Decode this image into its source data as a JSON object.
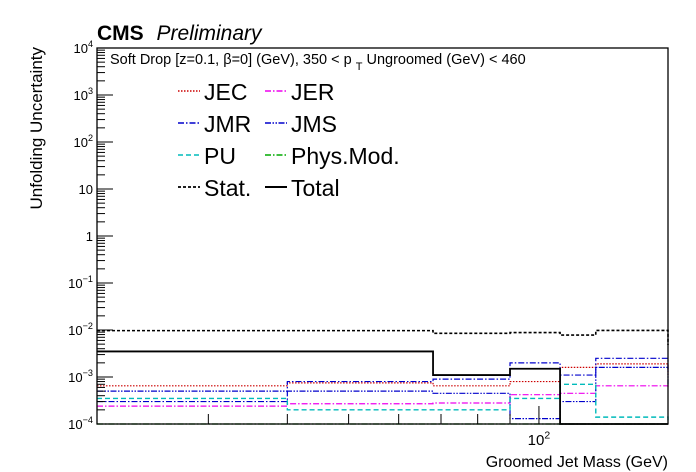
{
  "header": {
    "experiment": "CMS",
    "status": "Preliminary"
  },
  "chart_data": {
    "type": "line",
    "xlabel": "Groomed Jet Mass (GeV)",
    "ylabel": "Unfolding Uncertainty",
    "annotation": {
      "pre": "Soft Drop [z=0.1, ",
      "beta": "β",
      "mid": "=0] (GeV), 350 < p",
      "sub": "T",
      "post": " Ungroomed (GeV)  < 460"
    },
    "x_scale": "log",
    "y_scale": "log",
    "xlim": [
      20,
      160
    ],
    "ylim": [
      0.0001,
      10000
    ],
    "x_bins": [
      20,
      40,
      68,
      90,
      108,
      123,
      160
    ],
    "x_tick_label": "10^2",
    "y_ticks": [
      {
        "value": 0.0001,
        "label": "10^-4"
      },
      {
        "value": 0.001,
        "label": "10^-3"
      },
      {
        "value": 0.01,
        "label": "10^-2"
      },
      {
        "value": 0.1,
        "label": "10^-1"
      },
      {
        "value": 1,
        "label": "1"
      },
      {
        "value": 10,
        "label": "10"
      },
      {
        "value": 100,
        "label": "10^2"
      },
      {
        "value": 1000,
        "label": "10^3"
      },
      {
        "value": 10000,
        "label": "10^4"
      }
    ],
    "series": [
      {
        "name": "JEC",
        "color": "#cc0000",
        "dash": "1.5,1.5",
        "width": 1.2,
        "values": [
          0.00065,
          0.00075,
          0.00065,
          0.0008,
          0.0016,
          0.0019,
          0.0011
        ]
      },
      {
        "name": "JER",
        "color": "#ee00ee",
        "dash": "6,2,1.5,2",
        "width": 1.2,
        "values": [
          0.00024,
          0.00027,
          0.00028,
          0.00042,
          0.00045,
          0.00065,
          0.00058
        ]
      },
      {
        "name": "JMR",
        "color": "#0000cc",
        "dash": "6,2,1.5,2",
        "width": 1.2,
        "values": [
          0.0003,
          0.0008,
          0.0009,
          0.002,
          0.0011,
          0.0025,
          0.0015
        ]
      },
      {
        "name": "JMS",
        "color": "#0000cc",
        "dash": "6,1.5,1.5,1.5,1.5,1.5",
        "width": 1.2,
        "values": [
          0.0005,
          0.0005,
          0.00045,
          0.00013,
          0.0003,
          0.0016,
          0.0007
        ]
      },
      {
        "name": "PU",
        "color": "#00bbbb",
        "dash": "5,3",
        "width": 1.4,
        "values": [
          0.00035,
          0.0002,
          0.0002,
          0.00035,
          0.0007,
          0.00014,
          0.00012
        ]
      },
      {
        "name": "Phys.Mod.",
        "color": "#00aa00",
        "dash": "6,2,1.5,2",
        "width": 1.2,
        "values": [
          0.0001,
          0.0001,
          0.0001,
          0.0001,
          0.0001,
          0.0001,
          0.0001
        ]
      },
      {
        "name": "Stat.",
        "color": "#000000",
        "dash": "3,2",
        "width": 1.6,
        "values": [
          0.0097,
          0.0097,
          0.0085,
          0.0088,
          0.0078,
          0.0098,
          0.0048
        ]
      },
      {
        "name": "Total",
        "color": "#000000",
        "dash": "",
        "width": 1.8,
        "values": [
          0.0035,
          0.0035,
          0.0011,
          0.0015,
          0.0001,
          0.0001,
          0.0001
        ]
      }
    ],
    "legend_position": "top-left"
  }
}
